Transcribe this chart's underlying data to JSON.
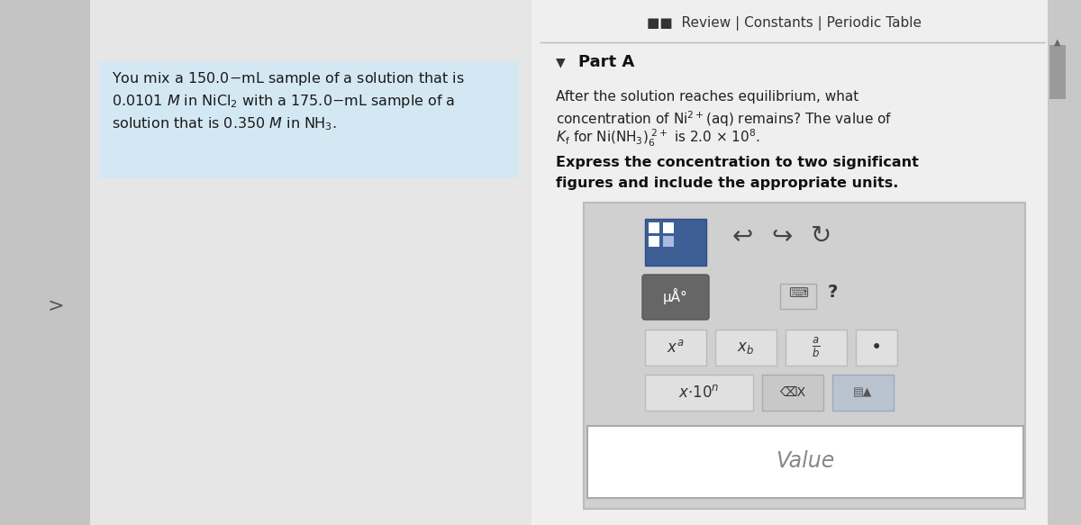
{
  "bg_outer": "#c8c8c8",
  "bg_left_main": "#e8e8e8",
  "bg_left_dark": "#c0c0c0",
  "bg_right": "#f0f0f0",
  "prob_box_color": "#d4e8f4",
  "scrollbar_bg": "#c0c0c0",
  "scrollbar_thumb": "#a0a0a0",
  "widget_bg": "#d8d8d8",
  "widget_border": "#bbbbbb",
  "blue_btn_bg": "#3d5f96",
  "blue_btn_border": "#2d4f86",
  "gray_btn_bg": "#666666",
  "light_btn_bg": "#e0e0e0",
  "light_btn_border": "#bbbbbb",
  "darker_btn_bg": "#c8c8c8",
  "darker_btn_border": "#aaaaaa",
  "value_box_bg": "#ffffff",
  "value_box_border": "#aaaaaa",
  "sep_line_color": "#bbbbbb",
  "top_bar_text": "■■  Review | Constants | Periodic Table",
  "part_a_label": "Part A",
  "value_label": "Value"
}
